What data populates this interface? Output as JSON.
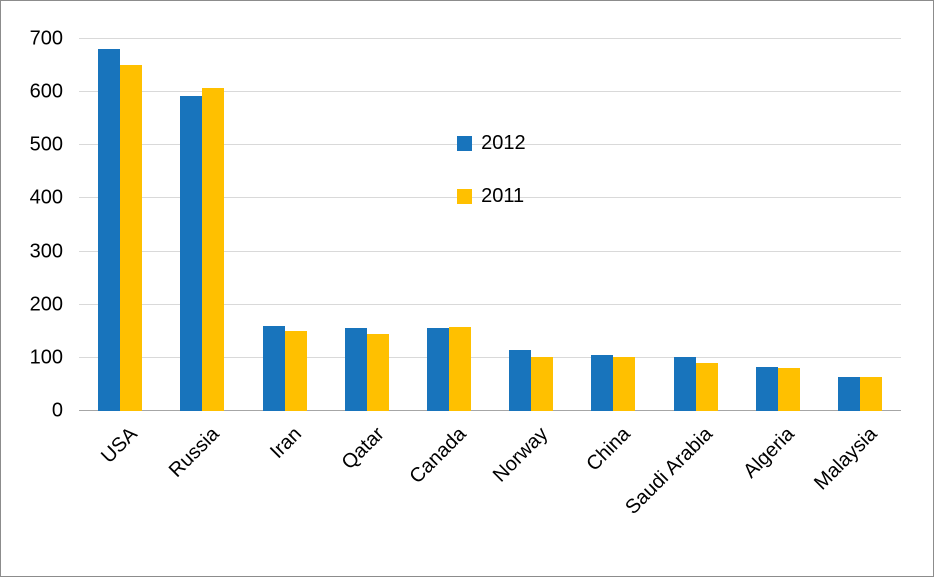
{
  "chart_data": {
    "type": "bar",
    "categories": [
      "USA",
      "Russia",
      "Iran",
      "Qatar",
      "Canada",
      "Norway",
      "China",
      "Saudi Arabia",
      "Algeria",
      "Malaysia"
    ],
    "series": [
      {
        "name": "2012",
        "values": [
          681,
          592,
          160,
          157,
          156,
          114,
          106,
          101,
          82,
          64
        ]
      },
      {
        "name": "2011",
        "values": [
          651,
          607,
          151,
          144,
          159,
          101,
          102,
          91,
          81,
          64
        ]
      }
    ],
    "title": "",
    "xlabel": "",
    "ylabel": "",
    "ylim": [
      0,
      700
    ],
    "yticks": [
      0,
      100,
      200,
      300,
      400,
      500,
      600,
      700
    ],
    "grid": true,
    "legend_position": "inside-center",
    "colors": {
      "2012": "#1874bc",
      "2011": "#ffc000"
    },
    "gridline_color": "#d9d9d9",
    "axis_line_color": "#a6a6a6"
  }
}
